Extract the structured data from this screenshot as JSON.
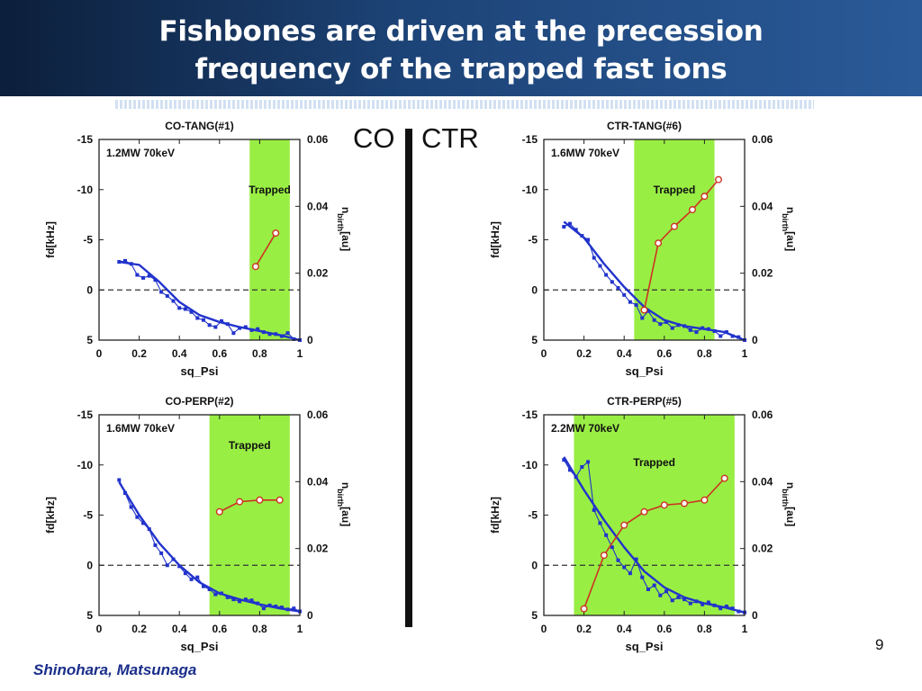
{
  "slide": {
    "title_line1": "Fishbones are driven at the precession",
    "title_line2": "frequency of the trapped fast ions",
    "co_label": "CO",
    "ctr_label": "CTR",
    "page_number": "9",
    "authors": "Shinohara, Matsunaga"
  },
  "colors": {
    "title_bar": "#1d4478",
    "trapped_region": "#99ee44",
    "fd_series": "#2233cc",
    "nbirth_series": "#cc3322",
    "authors": "#1a2e8a"
  },
  "chart_data": [
    {
      "type": "line",
      "title": "CO-TANG(#1)",
      "annotation": "1.2MW 70keV",
      "trapped_label": "Trapped",
      "trapped_range": [
        0.75,
        0.95
      ],
      "xlabel": "sq_Psi",
      "ylabel_left": "fd[kHz]",
      "ylabel_right": "n_birth[au]",
      "xlim": [
        0,
        1
      ],
      "ylim_left": [
        -15,
        5
      ],
      "ylim_right": [
        0,
        0.06
      ],
      "x_ticks": [
        "0",
        "0.2",
        "0.4",
        "0.6",
        "0.8",
        "1"
      ],
      "y_ticks_left": [
        "-15",
        "-10",
        "-5",
        "0",
        "5"
      ],
      "y_ticks_right": [
        "0.06",
        "0.04",
        "0.02",
        "0"
      ],
      "series": [
        {
          "axis": "left",
          "x": [
            0.1,
            0.13,
            0.16,
            0.19,
            0.22,
            0.25,
            0.28,
            0.31,
            0.34,
            0.37,
            0.4,
            0.43,
            0.46,
            0.49,
            0.52,
            0.55,
            0.58,
            0.61,
            0.64,
            0.67,
            0.7,
            0.73,
            0.76,
            0.79,
            0.82,
            0.85,
            0.88,
            0.91,
            0.94,
            0.97,
            1.0
          ],
          "y": [
            -2.8,
            -2.9,
            -2.6,
            -1.5,
            -1.2,
            -1.4,
            -1.0,
            0.2,
            0.6,
            1.1,
            1.8,
            1.9,
            2.2,
            2.8,
            3.0,
            3.5,
            3.7,
            3.1,
            3.4,
            4.3,
            3.8,
            3.7,
            4.0,
            3.9,
            4.2,
            4.4,
            4.4,
            4.6,
            4.3,
            4.9,
            5.0
          ]
        },
        {
          "axis": "left",
          "type": "fit",
          "x": [
            0.1,
            0.2,
            0.3,
            0.4,
            0.5,
            0.6,
            0.7,
            0.8,
            0.9,
            1.0
          ],
          "y": [
            -2.8,
            -2.5,
            -0.8,
            1.2,
            2.5,
            3.2,
            3.7,
            4.1,
            4.5,
            5.0
          ]
        },
        {
          "axis": "right",
          "x": [
            0.78,
            0.88
          ],
          "y": [
            0.022,
            0.032
          ]
        }
      ]
    },
    {
      "type": "line",
      "title": "CTR-TANG(#6)",
      "annotation": "1.6MW 70keV",
      "trapped_label": "Trapped",
      "trapped_range": [
        0.45,
        0.85
      ],
      "xlabel": "sq_Psi",
      "ylabel_left": "fd[kHz]",
      "ylabel_right": "n_birth[au]",
      "xlim": [
        0,
        1
      ],
      "ylim_left": [
        -15,
        5
      ],
      "ylim_right": [
        0,
        0.06
      ],
      "x_ticks": [
        "0",
        "0.2",
        "0.4",
        "0.6",
        "0.8",
        "1"
      ],
      "y_ticks_left": [
        "-15",
        "-10",
        "-5",
        "0",
        "5"
      ],
      "y_ticks_right": [
        "0.06",
        "0.04",
        "0.02",
        "0"
      ],
      "series": [
        {
          "axis": "left",
          "x": [
            0.1,
            0.13,
            0.16,
            0.19,
            0.22,
            0.25,
            0.28,
            0.31,
            0.34,
            0.37,
            0.4,
            0.43,
            0.46,
            0.49,
            0.52,
            0.55,
            0.58,
            0.61,
            0.64,
            0.67,
            0.7,
            0.73,
            0.76,
            0.79,
            0.82,
            0.85,
            0.88,
            0.91,
            0.94,
            0.97,
            1.0
          ],
          "y": [
            -6.3,
            -6.6,
            -6.0,
            -5.4,
            -5.0,
            -3.2,
            -2.4,
            -1.5,
            -0.8,
            -0.2,
            0.5,
            1.2,
            1.5,
            2.8,
            2.1,
            3.0,
            3.4,
            3.2,
            3.8,
            3.5,
            3.6,
            4.0,
            4.2,
            3.8,
            3.9,
            4.1,
            4.6,
            4.2,
            4.6,
            4.7,
            5.0
          ]
        },
        {
          "axis": "left",
          "type": "fit",
          "x": [
            0.1,
            0.2,
            0.3,
            0.4,
            0.5,
            0.6,
            0.7,
            0.8,
            0.9,
            1.0
          ],
          "y": [
            -6.8,
            -5.2,
            -2.6,
            -0.3,
            1.7,
            3.0,
            3.6,
            3.9,
            4.2,
            5.0
          ]
        },
        {
          "axis": "right",
          "x": [
            0.5,
            0.57,
            0.65,
            0.74,
            0.8,
            0.87
          ],
          "y": [
            0.009,
            0.029,
            0.034,
            0.039,
            0.043,
            0.048
          ]
        }
      ]
    },
    {
      "type": "line",
      "title": "CO-PERP(#2)",
      "annotation": "1.6MW 70keV",
      "trapped_label": "Trapped",
      "trapped_range": [
        0.55,
        0.95
      ],
      "xlabel": "sq_Psi",
      "ylabel_left": "fd[kHz]",
      "ylabel_right": "n_birth[au]",
      "xlim": [
        0,
        1
      ],
      "ylim_left": [
        -15,
        5
      ],
      "ylim_right": [
        0,
        0.06
      ],
      "x_ticks": [
        "0",
        "0.2",
        "0.4",
        "0.6",
        "0.8",
        "1"
      ],
      "y_ticks_left": [
        "-15",
        "-10",
        "-5",
        "0",
        "5"
      ],
      "y_ticks_right": [
        "0.06",
        "0.04",
        "0.02",
        "0"
      ],
      "series": [
        {
          "axis": "left",
          "x": [
            0.1,
            0.13,
            0.16,
            0.19,
            0.22,
            0.25,
            0.28,
            0.31,
            0.34,
            0.37,
            0.4,
            0.43,
            0.46,
            0.49,
            0.52,
            0.55,
            0.58,
            0.61,
            0.64,
            0.67,
            0.7,
            0.73,
            0.76,
            0.79,
            0.82,
            0.85,
            0.88,
            0.91,
            0.94,
            0.97,
            1.0
          ],
          "y": [
            -8.5,
            -7.2,
            -5.8,
            -4.8,
            -4.2,
            -3.6,
            -2.0,
            -1.2,
            0.0,
            -0.6,
            0.1,
            0.8,
            1.4,
            1.2,
            2.1,
            2.4,
            2.9,
            2.8,
            3.2,
            3.4,
            3.6,
            3.4,
            3.5,
            3.8,
            4.3,
            4.0,
            4.1,
            4.2,
            4.4,
            4.3,
            4.6
          ]
        },
        {
          "axis": "left",
          "type": "fit",
          "x": [
            0.1,
            0.2,
            0.3,
            0.4,
            0.5,
            0.6,
            0.7,
            0.8,
            0.9,
            1.0
          ],
          "y": [
            -8.3,
            -5.0,
            -2.2,
            0.0,
            1.7,
            2.8,
            3.4,
            3.9,
            4.3,
            4.6
          ]
        },
        {
          "axis": "right",
          "x": [
            0.6,
            0.7,
            0.8,
            0.9
          ],
          "y": [
            0.031,
            0.034,
            0.0345,
            0.0345
          ]
        }
      ]
    },
    {
      "type": "line",
      "title": "CTR-PERP(#5)",
      "annotation": "2.2MW 70keV",
      "trapped_label": "Trapped",
      "trapped_range": [
        0.15,
        0.95
      ],
      "xlabel": "sq_Psi",
      "ylabel_left": "fd[kHz]",
      "ylabel_right": "n_birth[au]",
      "xlim": [
        0,
        1
      ],
      "ylim_left": [
        -15,
        5
      ],
      "ylim_right": [
        0,
        0.06
      ],
      "x_ticks": [
        "0",
        "0.2",
        "0.4",
        "0.6",
        "0.8",
        "1"
      ],
      "y_ticks_left": [
        "-15",
        "-10",
        "-5",
        "0",
        "5"
      ],
      "y_ticks_right": [
        "0.06",
        "0.04",
        "0.02",
        "0"
      ],
      "series": [
        {
          "axis": "left",
          "x": [
            0.1,
            0.13,
            0.16,
            0.19,
            0.22,
            0.25,
            0.28,
            0.31,
            0.34,
            0.37,
            0.4,
            0.43,
            0.46,
            0.49,
            0.52,
            0.55,
            0.58,
            0.61,
            0.64,
            0.67,
            0.7,
            0.73,
            0.76,
            0.79,
            0.82,
            0.85,
            0.88,
            0.91,
            0.94,
            0.97,
            1.0
          ],
          "y": [
            -10.5,
            -9.5,
            -8.8,
            -9.8,
            -10.3,
            -5.5,
            -4.2,
            -3.0,
            -1.8,
            -0.5,
            0.2,
            0.8,
            -0.6,
            1.2,
            2.4,
            2.0,
            3.0,
            2.6,
            3.5,
            3.2,
            3.4,
            3.8,
            3.6,
            3.9,
            3.7,
            4.0,
            4.3,
            4.1,
            4.3,
            4.6,
            4.7
          ]
        },
        {
          "axis": "left",
          "type": "fit",
          "x": [
            0.1,
            0.2,
            0.3,
            0.4,
            0.5,
            0.6,
            0.7,
            0.8,
            0.9,
            1.0
          ],
          "y": [
            -10.8,
            -7.5,
            -4.5,
            -1.8,
            0.6,
            2.2,
            3.2,
            3.8,
            4.2,
            4.7
          ]
        },
        {
          "axis": "right",
          "x": [
            0.2,
            0.3,
            0.4,
            0.5,
            0.6,
            0.7,
            0.8,
            0.9
          ],
          "y": [
            0.002,
            0.018,
            0.027,
            0.031,
            0.033,
            0.0335,
            0.0345,
            0.041
          ]
        }
      ]
    }
  ]
}
